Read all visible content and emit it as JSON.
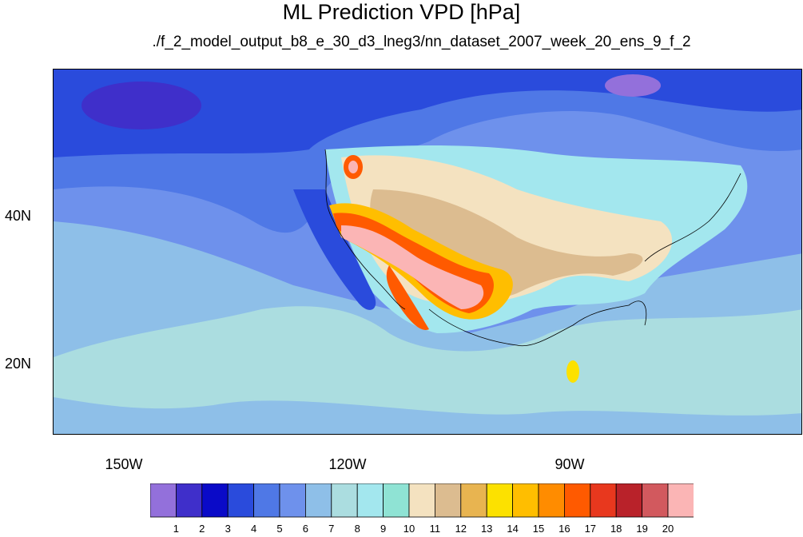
{
  "title": "ML Prediction VPD [hPa]",
  "subtitle": "./f_2_model_output_b8_e_30_d3_lneg3/nn_dataset_2007_week_20_ens_9_f_2",
  "lat_labels": [
    "40N",
    "20N"
  ],
  "lon_labels": [
    "150W",
    "120W",
    "90W"
  ],
  "colorbar": {
    "labels": [
      "1",
      "2",
      "3",
      "4",
      "5",
      "6",
      "7",
      "8",
      "9",
      "10",
      "11",
      "12",
      "13",
      "14",
      "15",
      "16",
      "17",
      "18",
      "19",
      "20"
    ],
    "colors": [
      "#9370db",
      "#3f2fca",
      "#0a0ac8",
      "#2a4bdc",
      "#4f78e6",
      "#6e91ec",
      "#8ebfe8",
      "#abdde0",
      "#a3e7ee",
      "#8fe3d4",
      "#f4e2c0",
      "#dcbc90",
      "#e8b450",
      "#fce100",
      "#ffbe00",
      "#ff8c00",
      "#ff5a00",
      "#e8381e",
      "#b9222a",
      "#d2595e",
      "#fbb5b5"
    ]
  }
}
